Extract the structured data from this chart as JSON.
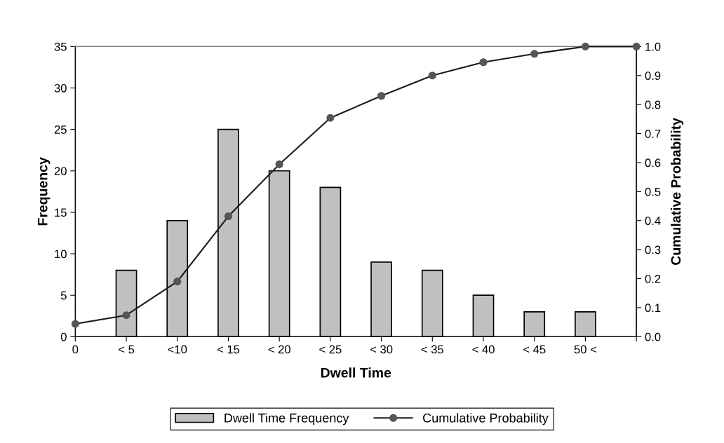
{
  "chart_data": {
    "type": "bar",
    "xlabel": "Dwell Time",
    "ylabel": "Frequency",
    "y2label": "Cumulative Probability",
    "categories": [
      "0",
      "< 5",
      "<10",
      "< 15",
      "< 20",
      "< 25",
      "< 30",
      "< 35",
      "< 40",
      "< 45",
      "50 <",
      null
    ],
    "series": [
      {
        "name": "Dwell Time Frequency",
        "color": "#c0c0c0",
        "values": [
          null,
          8,
          14,
          25,
          20,
          18,
          9,
          8,
          5,
          3,
          3,
          null
        ]
      },
      {
        "name": "Cumulative Probability",
        "type": "line",
        "axis": "y2",
        "color": "#1a1a1a",
        "marker": "circle",
        "values": [
          0.044,
          0.074,
          0.19,
          0.415,
          0.594,
          0.754,
          0.83,
          0.9,
          0.946,
          0.975,
          1.0,
          1.0
        ]
      }
    ],
    "ylim": [
      0,
      35
    ],
    "yticks": [
      0,
      5,
      10,
      15,
      20,
      25,
      30,
      35
    ],
    "y2lim": [
      0,
      1
    ],
    "y2ticks": [
      {
        "value": 0,
        "label": "0.0"
      },
      0.1,
      0.2,
      0.3,
      0.4,
      0.5,
      0.6,
      0.7,
      0.8,
      0.9,
      {
        "value": 1,
        "label": "1.0"
      }
    ],
    "grid": false,
    "legend": "bottom"
  }
}
